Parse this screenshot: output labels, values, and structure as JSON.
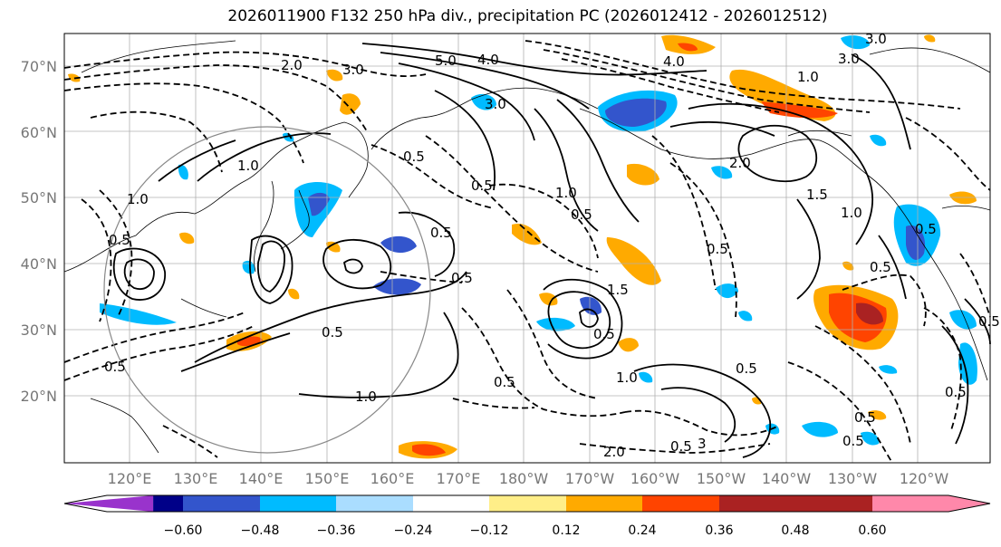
{
  "title": "2026011900 F132 250 hPa div., precipitation PC (2026012412 - 2026012512)",
  "lat_labels": [
    "70°N",
    "60°N",
    "50°N",
    "40°N",
    "30°N",
    "20°N"
  ],
  "lon_labels": [
    "120°E",
    "130°E",
    "140°E",
    "150°E",
    "160°E",
    "170°E",
    "180°W",
    "170°W",
    "160°W",
    "150°W",
    "140°W",
    "130°W",
    "120°W"
  ],
  "contour_labels": [
    "2.0",
    "3.0",
    "5.0",
    "4.0",
    "3.0",
    "4.0",
    "3.0",
    "1.0",
    "3.0",
    "0.5",
    "0.5",
    "1.0",
    "1.0",
    "0.5",
    "1.0",
    "2.0",
    "1.5",
    "1.0",
    "0.5",
    "0.5",
    "0.5",
    "0.5",
    "1.0",
    "1.5",
    "0.5",
    "0.5",
    "0.5",
    "1.0",
    "0.5",
    "2.0",
    "0.5",
    "3",
    "0.5",
    "0.5",
    "0.5",
    "0.5",
    "0.5",
    "0.5",
    "0.5"
  ],
  "colorbar": {
    "ticks": [
      "−0.60",
      "−0.48",
      "−0.36",
      "−0.24",
      "−0.12",
      "0.12",
      "0.24",
      "0.36",
      "0.48",
      "0.60"
    ],
    "colors": [
      "#9933cc",
      "#000088",
      "#3355cc",
      "#00bbff",
      "#aaddff",
      "#ffffff",
      "#ffee88",
      "#ffaa00",
      "#ff4400",
      "#aa2222",
      "#ff88aa"
    ]
  },
  "legend_colors": {
    "neg_strong": "#3355cc",
    "neg": "#00bbff",
    "neg_light": "#aaddff",
    "pos_light": "#ffee88",
    "pos": "#ffaa00",
    "pos_strong": "#ff4400",
    "pos_darkest": "#aa2222"
  }
}
